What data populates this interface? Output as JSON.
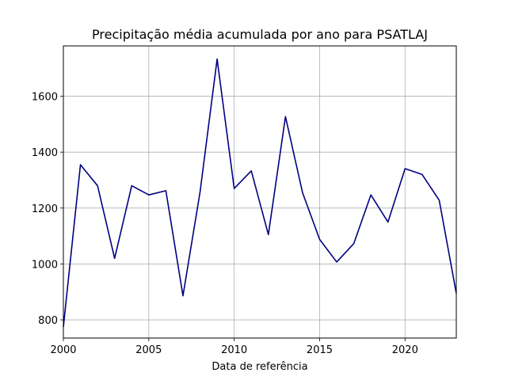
{
  "chart_data": {
    "type": "line",
    "title": "Precipitação média acumulada por ano para PSATLAJ",
    "xlabel": "Data de referência",
    "ylabel": "",
    "xlim": [
      2000,
      2023
    ],
    "ylim": [
      735,
      1780
    ],
    "grid": true,
    "x_ticks": [
      2000,
      2005,
      2010,
      2015,
      2020
    ],
    "y_ticks": [
      800,
      1000,
      1200,
      1400,
      1600
    ],
    "series": [
      {
        "color": "#000080",
        "x": [
          2000,
          2001,
          2002,
          2003,
          2004,
          2005,
          2006,
          2007,
          2008,
          2009,
          2010,
          2011,
          2012,
          2013,
          2014,
          2015,
          2016,
          2017,
          2018,
          2019,
          2020,
          2021,
          2022,
          2023
        ],
        "y": [
          775,
          1355,
          1280,
          1020,
          1280,
          1247,
          1262,
          886,
          1257,
          1733,
          1270,
          1333,
          1105,
          1527,
          1255,
          1088,
          1007,
          1073,
          1247,
          1150,
          1341,
          1320,
          1228,
          895
        ]
      }
    ]
  }
}
